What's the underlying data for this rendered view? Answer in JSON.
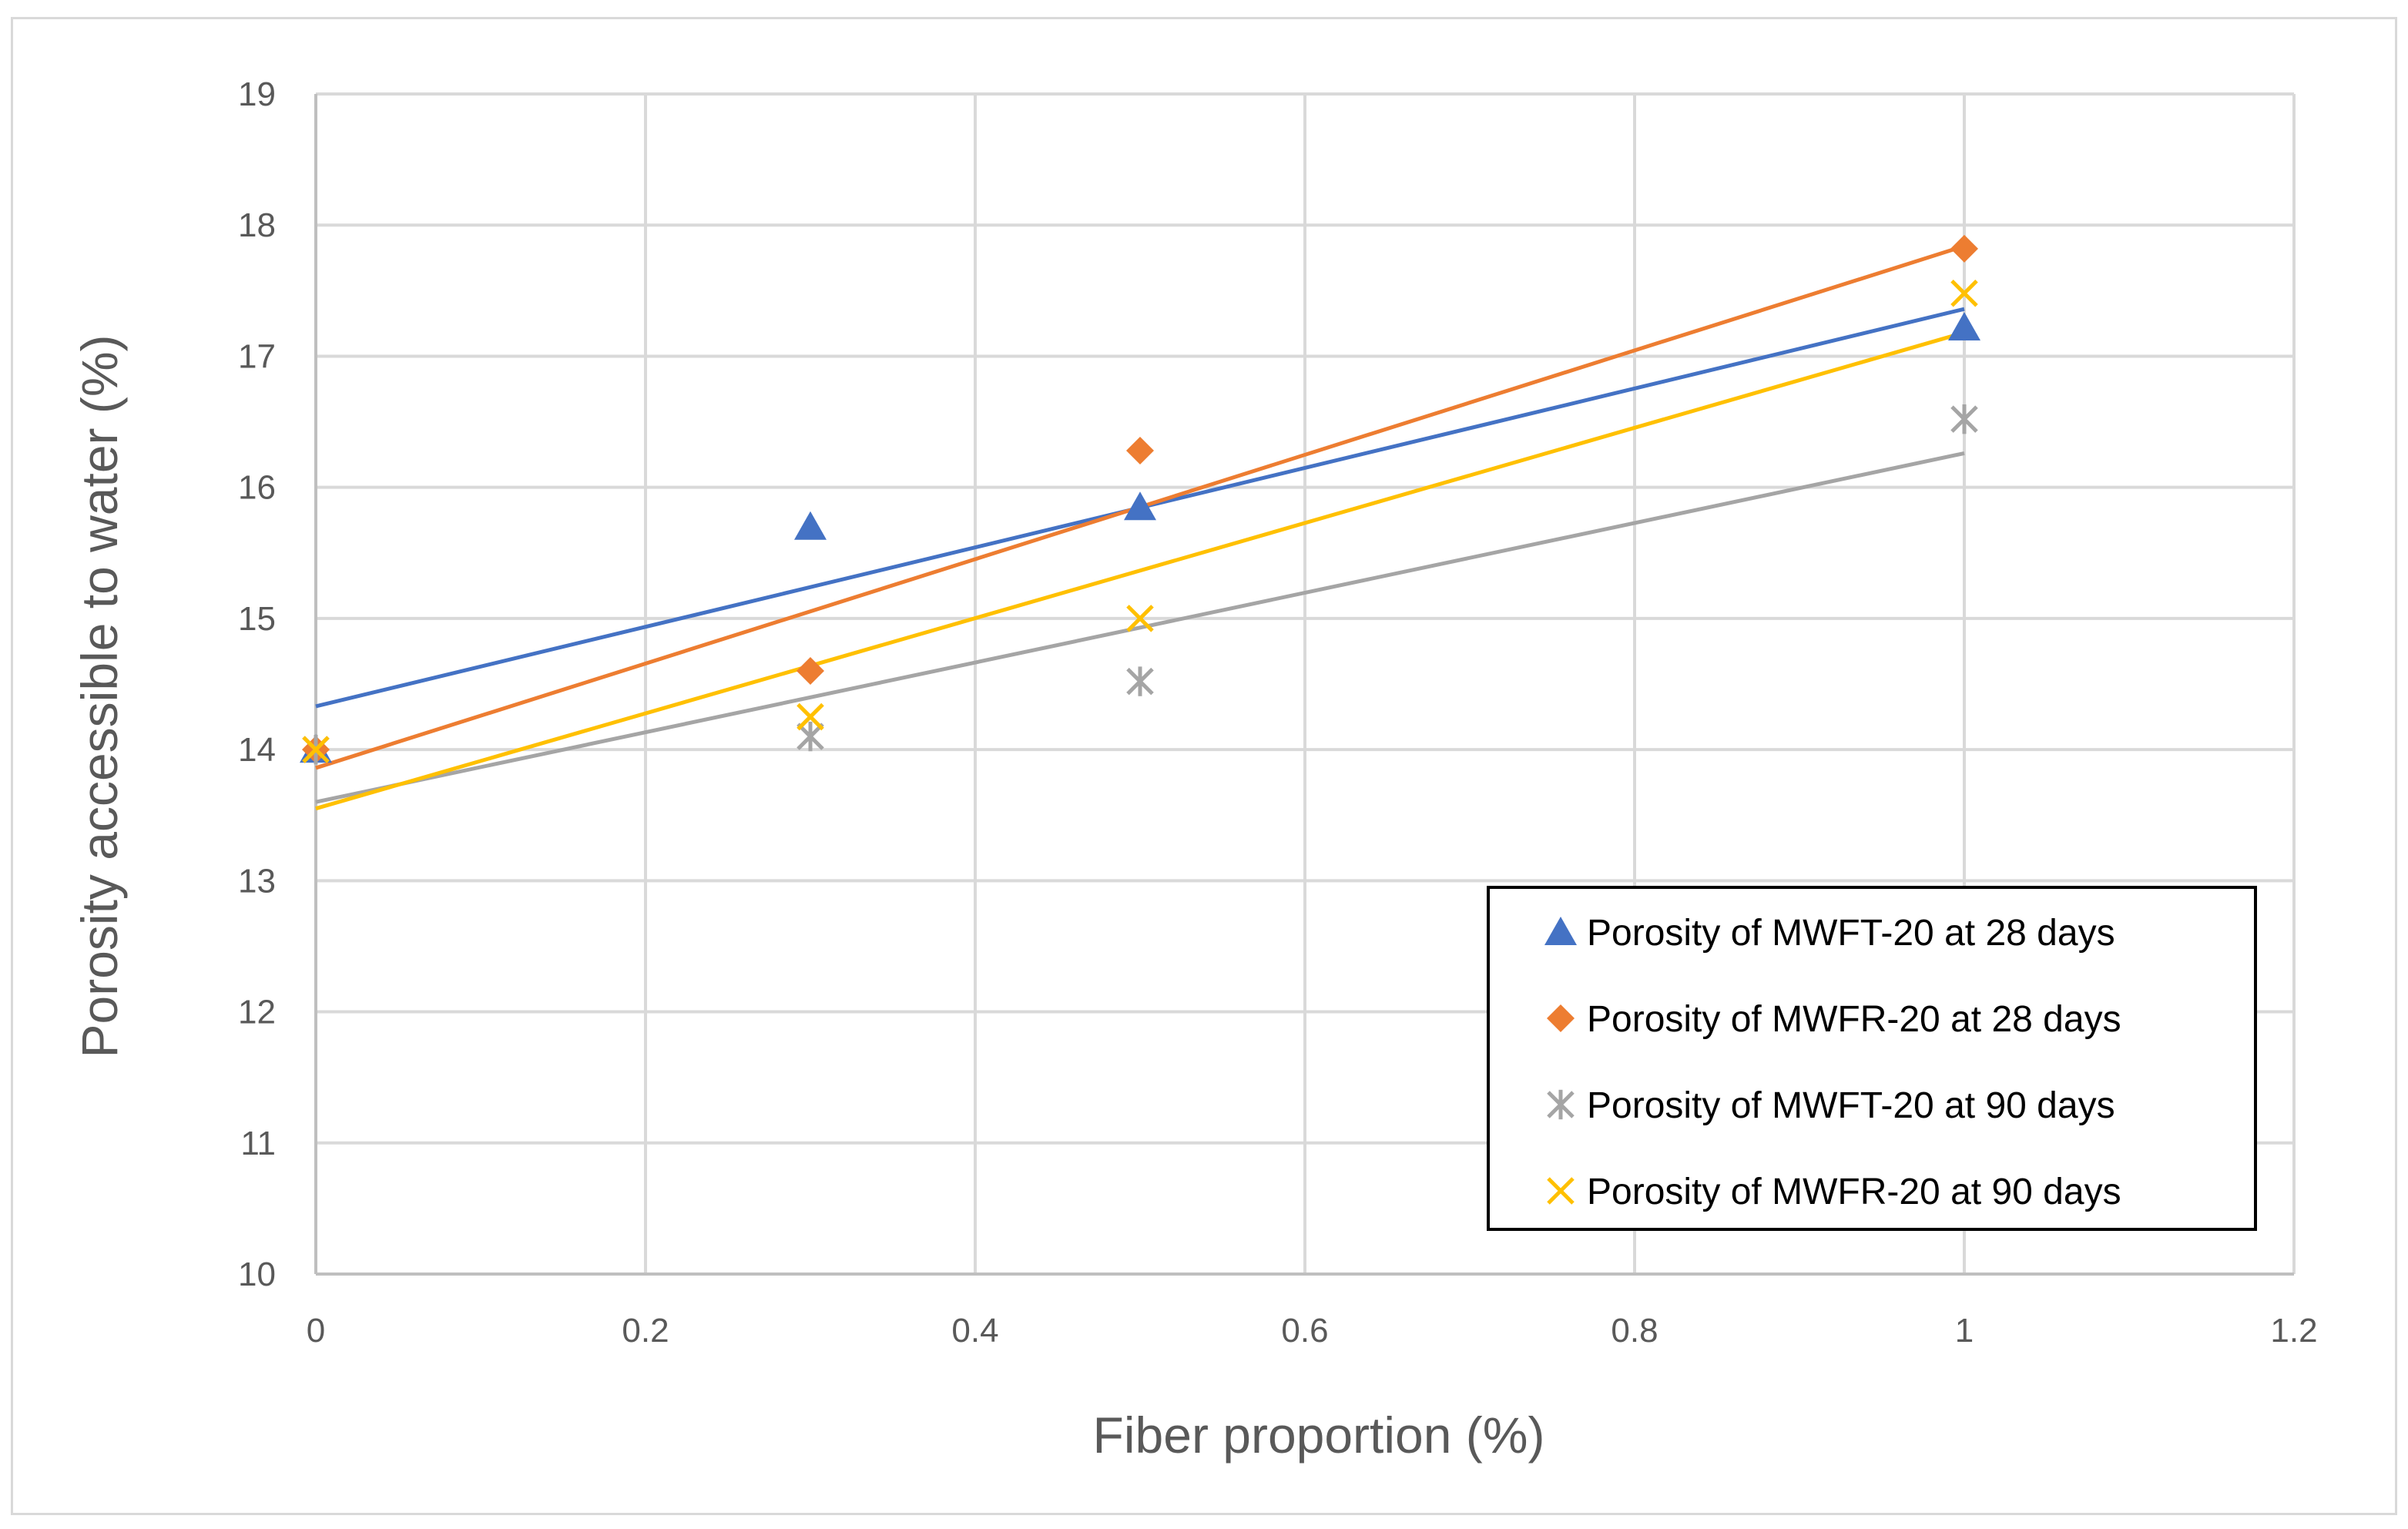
{
  "chart_data": {
    "type": "scatter",
    "title": "",
    "xlabel": "Fiber proportion (%)",
    "ylabel": "Porosity accessible to water (%)",
    "xlim": [
      0,
      1.2
    ],
    "ylim": [
      10,
      19
    ],
    "x_ticks": [
      "0",
      "0.2",
      "0.4",
      "0.6",
      "0.8",
      "1",
      "1.2"
    ],
    "y_ticks": [
      "10",
      "11",
      "12",
      "13",
      "14",
      "15",
      "16",
      "17",
      "18",
      "19"
    ],
    "grid": true,
    "legend_position": "bottom-right",
    "series": [
      {
        "name": "Porosity of MWFT-20 at 28 days",
        "marker": "triangle",
        "color": "#4472c4",
        "x": [
          0,
          0.3,
          0.5,
          1
        ],
        "y": [
          14.0,
          15.7,
          15.85,
          17.22
        ],
        "trendline": {
          "slope": 3.03,
          "intercept": 14.33
        }
      },
      {
        "name": "Porosity of MWFR-20 at 28 days",
        "marker": "diamond",
        "color": "#ed7d31",
        "x": [
          0,
          0.3,
          0.5,
          1
        ],
        "y": [
          14.0,
          14.6,
          16.28,
          17.82
        ],
        "trendline": {
          "slope": 3.98,
          "intercept": 13.86
        }
      },
      {
        "name": "Porosity of MWFT-20 at 90 days",
        "marker": "asterisk",
        "color": "#a5a5a5",
        "x": [
          0,
          0.3,
          0.5,
          1
        ],
        "y": [
          14.0,
          14.1,
          14.52,
          16.52
        ],
        "trendline": {
          "slope": 2.66,
          "intercept": 13.6
        }
      },
      {
        "name": "Porosity of MWFR-20 at 90 days",
        "marker": "cross",
        "color": "#ffc000",
        "x": [
          0,
          0.3,
          0.5,
          1
        ],
        "y": [
          14.0,
          14.25,
          15.0,
          17.48
        ],
        "trendline": {
          "slope": 3.63,
          "intercept": 13.55
        }
      }
    ]
  }
}
